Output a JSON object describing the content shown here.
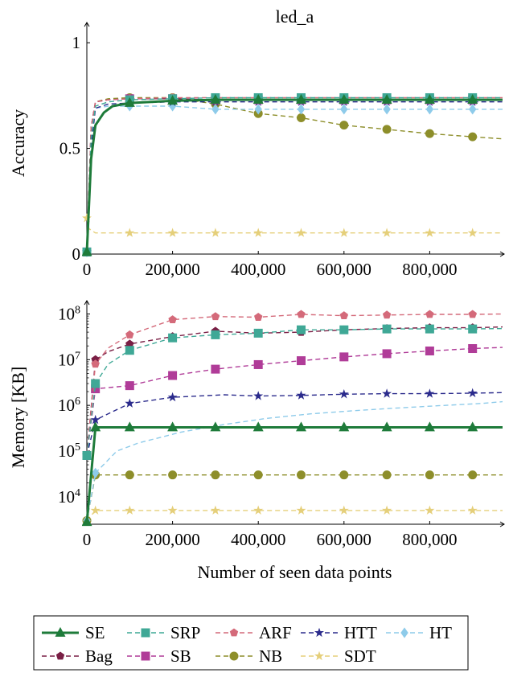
{
  "chart_data": [
    {
      "type": "line",
      "title": "led_a",
      "xlabel": "",
      "ylabel": "Accuracy",
      "xlim": [
        0,
        970000
      ],
      "ylim": [
        0,
        1.05
      ],
      "y_scale": "linear",
      "x_ticks": [
        0,
        200000,
        400000,
        600000,
        800000
      ],
      "x_tick_labels": [
        "0",
        "200,000",
        "400,000",
        "600,000",
        "800,000"
      ],
      "y_ticks": [
        0,
        0.5,
        1
      ],
      "y_tick_labels": [
        "0",
        "0.5",
        "1"
      ],
      "series": [
        {
          "name": "SE",
          "x": [
            0,
            10000,
            20000,
            40000,
            60000,
            100000,
            150000,
            200000,
            300000,
            400000,
            500000,
            600000,
            700000,
            800000,
            900000,
            970000
          ],
          "y": [
            0.01,
            0.45,
            0.61,
            0.67,
            0.7,
            0.715,
            0.72,
            0.725,
            0.73,
            0.73,
            0.73,
            0.73,
            0.73,
            0.73,
            0.73,
            0.73
          ]
        },
        {
          "name": "SRP",
          "x": [
            0,
            10000,
            20000,
            50000,
            100000,
            200000,
            300000,
            400000,
            500000,
            600000,
            700000,
            800000,
            900000,
            970000
          ],
          "y": [
            0.01,
            0.55,
            0.7,
            0.72,
            0.73,
            0.735,
            0.74,
            0.74,
            0.74,
            0.74,
            0.74,
            0.74,
            0.74,
            0.74
          ]
        },
        {
          "name": "ARF",
          "x": [
            0,
            10000,
            20000,
            50000,
            100000,
            200000,
            300000,
            400000,
            500000,
            600000,
            700000,
            800000,
            900000,
            970000
          ],
          "y": [
            0.01,
            0.6,
            0.72,
            0.73,
            0.735,
            0.74,
            0.74,
            0.74,
            0.74,
            0.74,
            0.74,
            0.74,
            0.74,
            0.74
          ]
        },
        {
          "name": "HTT",
          "x": [
            0,
            10000,
            20000,
            50000,
            100000,
            200000,
            300000,
            400000,
            500000,
            600000,
            700000,
            800000,
            900000,
            970000
          ],
          "y": [
            0.01,
            0.5,
            0.69,
            0.71,
            0.715,
            0.72,
            0.72,
            0.72,
            0.72,
            0.72,
            0.72,
            0.72,
            0.72,
            0.72
          ]
        },
        {
          "name": "HT",
          "x": [
            0,
            10000,
            20000,
            50000,
            100000,
            200000,
            300000,
            400000,
            500000,
            600000,
            700000,
            800000,
            900000,
            970000
          ],
          "y": [
            0.01,
            0.55,
            0.69,
            0.7,
            0.7,
            0.7,
            0.685,
            0.685,
            0.685,
            0.685,
            0.685,
            0.685,
            0.685,
            0.685
          ]
        },
        {
          "name": "Bag",
          "x": [
            0,
            10000,
            20000,
            50000,
            100000,
            200000,
            300000,
            400000,
            500000,
            600000,
            700000,
            800000,
            900000,
            970000
          ],
          "y": [
            0.01,
            0.6,
            0.72,
            0.73,
            0.735,
            0.735,
            0.73,
            0.73,
            0.73,
            0.73,
            0.73,
            0.73,
            0.73,
            0.73
          ]
        },
        {
          "name": "SB",
          "x": [
            0,
            10000,
            20000,
            50000,
            100000,
            200000,
            300000,
            400000,
            500000,
            600000,
            700000,
            800000,
            900000,
            970000
          ],
          "y": [
            0.01,
            0.6,
            0.72,
            0.73,
            0.735,
            0.735,
            0.73,
            0.73,
            0.73,
            0.73,
            0.73,
            0.73,
            0.73,
            0.73
          ]
        },
        {
          "name": "NB",
          "x": [
            0,
            10000,
            20000,
            50000,
            100000,
            200000,
            300000,
            400000,
            500000,
            600000,
            700000,
            800000,
            900000,
            970000
          ],
          "y": [
            0.01,
            0.6,
            0.72,
            0.735,
            0.74,
            0.74,
            0.71,
            0.665,
            0.645,
            0.61,
            0.59,
            0.57,
            0.555,
            0.545
          ]
        },
        {
          "name": "SDT",
          "x": [
            0,
            5000,
            20000,
            100000,
            200000,
            300000,
            400000,
            500000,
            600000,
            700000,
            800000,
            900000,
            970000
          ],
          "y": [
            0.17,
            0.12,
            0.1,
            0.1,
            0.1,
            0.1,
            0.1,
            0.1,
            0.1,
            0.1,
            0.1,
            0.1,
            0.1
          ]
        }
      ]
    },
    {
      "type": "line",
      "title": "",
      "xlabel": "Number of seen data points",
      "ylabel": "Memory [KB]",
      "xlim": [
        0,
        970000
      ],
      "ylim": [
        2500,
        120000000
      ],
      "y_scale": "log",
      "x_ticks": [
        0,
        200000,
        400000,
        600000,
        800000
      ],
      "x_tick_labels": [
        "0",
        "200,000",
        "400,000",
        "600,000",
        "800,000"
      ],
      "y_ticks": [
        10000,
        100000,
        1000000,
        10000000,
        100000000
      ],
      "y_tick_labels": [
        "10^4",
        "10^5",
        "10^6",
        "10^7",
        "10^8"
      ],
      "series": [
        {
          "name": "SE",
          "x": [
            0,
            20000,
            100000,
            200000,
            300000,
            400000,
            500000,
            600000,
            700000,
            800000,
            900000,
            970000
          ],
          "y": [
            2800,
            330000,
            330000,
            330000,
            330000,
            330000,
            330000,
            330000,
            330000,
            330000,
            330000,
            330000
          ]
        },
        {
          "name": "SRP",
          "x": [
            0,
            20000,
            50000,
            100000,
            200000,
            300000,
            400000,
            500000,
            600000,
            700000,
            800000,
            900000,
            970000
          ],
          "y": [
            80000,
            3000000,
            8000000,
            16000000,
            30000000,
            35000000,
            38000000,
            45000000,
            45000000,
            47000000,
            47000000,
            47000000,
            48000000
          ]
        },
        {
          "name": "ARF",
          "x": [
            0,
            20000,
            50000,
            100000,
            200000,
            300000,
            400000,
            500000,
            600000,
            700000,
            800000,
            900000,
            970000
          ],
          "y": [
            80000,
            8000000,
            18000000,
            35000000,
            75000000,
            88000000,
            85000000,
            98000000,
            92000000,
            95000000,
            98000000,
            98000000,
            100000000
          ]
        },
        {
          "name": "HTT",
          "x": [
            0,
            20000,
            100000,
            200000,
            320000,
            400000,
            500000,
            600000,
            700000,
            800000,
            900000,
            970000
          ],
          "y": [
            80000,
            480000,
            1100000,
            1500000,
            1700000,
            1600000,
            1650000,
            1750000,
            1800000,
            1800000,
            1850000,
            1900000
          ]
        },
        {
          "name": "HT",
          "x": [
            0,
            20000,
            70000,
            120000,
            220000,
            320000,
            420000,
            520000,
            620000,
            720000,
            820000,
            920000,
            970000
          ],
          "y": [
            3000,
            33000,
            100000,
            150000,
            260000,
            380000,
            520000,
            650000,
            760000,
            870000,
            980000,
            1100000,
            1200000
          ]
        },
        {
          "name": "Bag",
          "x": [
            0,
            20000,
            50000,
            100000,
            200000,
            300000,
            400000,
            500000,
            600000,
            700000,
            800000,
            900000,
            970000
          ],
          "y": [
            80000,
            10000000,
            15000000,
            22000000,
            32000000,
            42000000,
            38000000,
            40000000,
            45000000,
            48000000,
            50000000,
            50000000,
            52000000
          ]
        },
        {
          "name": "SB",
          "x": [
            0,
            20000,
            100000,
            200000,
            300000,
            400000,
            500000,
            600000,
            700000,
            800000,
            900000,
            970000
          ],
          "y": [
            80000,
            2300000,
            2700000,
            4500000,
            6200000,
            7800000,
            9500000,
            11500000,
            13500000,
            15500000,
            17500000,
            18500000
          ]
        },
        {
          "name": "NB",
          "x": [
            0,
            20000,
            100000,
            200000,
            300000,
            400000,
            500000,
            600000,
            700000,
            800000,
            900000,
            970000
          ],
          "y": [
            3000,
            30000,
            30000,
            30000,
            30000,
            30000,
            30000,
            30000,
            30000,
            30000,
            30000,
            30000
          ]
        },
        {
          "name": "SDT",
          "x": [
            0,
            20000,
            100000,
            200000,
            300000,
            400000,
            500000,
            600000,
            700000,
            800000,
            900000,
            970000
          ],
          "y": [
            3000,
            5000,
            5000,
            5000,
            5000,
            5000,
            5000,
            5000,
            5000,
            5000,
            5000,
            5000
          ]
        }
      ]
    }
  ],
  "legend": {
    "placement": "bottom",
    "entries": [
      "SE",
      "SRP",
      "ARF",
      "HTT",
      "HT",
      "Bag",
      "SB",
      "NB",
      "SDT"
    ]
  },
  "series_styles": {
    "SE": {
      "color": "#1e7b3a",
      "marker": "triangle",
      "dashed": false
    },
    "SRP": {
      "color": "#3fa896",
      "marker": "square",
      "dashed": true
    },
    "ARF": {
      "color": "#d46a7a",
      "marker": "pentagon",
      "dashed": true
    },
    "HTT": {
      "color": "#2b2b8c",
      "marker": "star",
      "dashed": true
    },
    "HT": {
      "color": "#8ecbea",
      "marker": "diamond",
      "dashed": true
    },
    "Bag": {
      "color": "#7a1f45",
      "marker": "pentagon",
      "dashed": true
    },
    "SB": {
      "color": "#b03c98",
      "marker": "square",
      "dashed": true
    },
    "NB": {
      "color": "#8d8e2a",
      "marker": "circle",
      "dashed": true
    },
    "SDT": {
      "color": "#e5cf7a",
      "marker": "star",
      "dashed": true
    }
  }
}
